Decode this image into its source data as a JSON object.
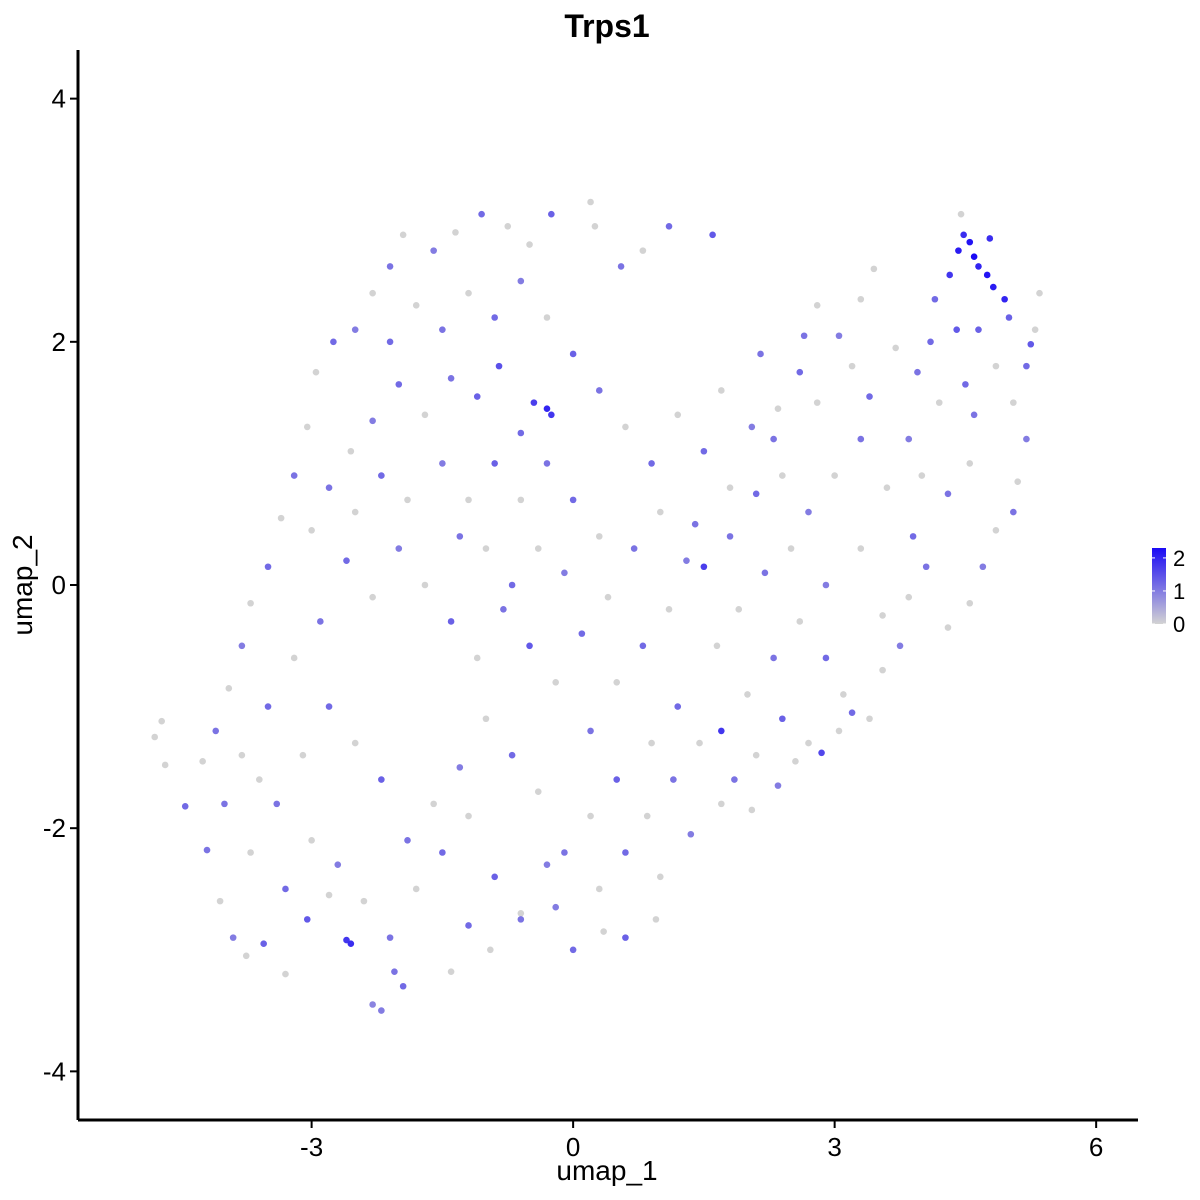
{
  "chart_data": {
    "type": "scatter",
    "title": "Trps1",
    "xlabel": "umap_1",
    "ylabel": "umap_2",
    "xlim": [
      -5.68,
      6.48
    ],
    "ylim": [
      -4.4,
      4.4
    ],
    "x_ticks": [
      -3,
      0,
      3,
      6
    ],
    "x_tick_labels": [
      "-3",
      "0",
      "3",
      "6"
    ],
    "y_ticks": [
      -4,
      -2,
      0,
      2,
      4
    ],
    "y_tick_labels": [
      "-4",
      "-2",
      "0",
      "2",
      "4"
    ],
    "grid": false,
    "legend": {
      "placement": "right",
      "type": "colorbar",
      "range": [
        0,
        2.3
      ],
      "ticks": [
        0,
        1,
        2
      ],
      "tick_labels": [
        "0",
        "1",
        "2"
      ],
      "low_color": "#d3d3d3",
      "high_color": "#1a0af5"
    },
    "point_color_scale": {
      "low": "#d3d3d3",
      "high": "#1a0af5",
      "min": 0,
      "max": 2.3
    },
    "points": [
      {
        "x": -4.8,
        "y": -1.25,
        "v": 0
      },
      {
        "x": -4.72,
        "y": -1.12,
        "v": 0
      },
      {
        "x": -4.68,
        "y": -1.48,
        "v": 0
      },
      {
        "x": -4.45,
        "y": -1.82,
        "v": 1.2
      },
      {
        "x": -4.2,
        "y": -2.18,
        "v": 1.1
      },
      {
        "x": -4.05,
        "y": -2.6,
        "v": 0
      },
      {
        "x": -3.9,
        "y": -2.9,
        "v": 1.0
      },
      {
        "x": -3.75,
        "y": -3.05,
        "v": 0
      },
      {
        "x": -3.55,
        "y": -2.95,
        "v": 1.3
      },
      {
        "x": -3.3,
        "y": -3.2,
        "v": 0
      },
      {
        "x": -3.05,
        "y": -2.75,
        "v": 1.4
      },
      {
        "x": -2.8,
        "y": -2.55,
        "v": 0
      },
      {
        "x": -2.6,
        "y": -2.92,
        "v": 1.8
      },
      {
        "x": -2.55,
        "y": -2.95,
        "v": 1.9
      },
      {
        "x": -2.3,
        "y": -3.45,
        "v": 0.9
      },
      {
        "x": -2.2,
        "y": -3.5,
        "v": 1.0
      },
      {
        "x": -2.05,
        "y": -3.18,
        "v": 1.1
      },
      {
        "x": -1.95,
        "y": -3.3,
        "v": 1.2
      },
      {
        "x": -1.4,
        "y": -3.18,
        "v": 0
      },
      {
        "x": -1.2,
        "y": -2.8,
        "v": 1.2
      },
      {
        "x": -0.95,
        "y": -3.0,
        "v": 0
      },
      {
        "x": -0.6,
        "y": -2.75,
        "v": 1.1
      },
      {
        "x": -0.2,
        "y": -2.65,
        "v": 1.0
      },
      {
        "x": 0.0,
        "y": -3.0,
        "v": 1.2
      },
      {
        "x": 0.35,
        "y": -2.85,
        "v": 0
      },
      {
        "x": 0.6,
        "y": -2.9,
        "v": 1.3
      },
      {
        "x": 0.95,
        "y": -2.75,
        "v": 0
      },
      {
        "x": 1.0,
        "y": -2.4,
        "v": 0
      },
      {
        "x": 1.35,
        "y": -2.05,
        "v": 1.0
      },
      {
        "x": 1.7,
        "y": -1.8,
        "v": 0
      },
      {
        "x": 1.85,
        "y": -1.6,
        "v": 1.1
      },
      {
        "x": 2.05,
        "y": -1.85,
        "v": 0
      },
      {
        "x": 2.35,
        "y": -1.65,
        "v": 1.0
      },
      {
        "x": 2.55,
        "y": -1.45,
        "v": 0
      },
      {
        "x": 2.7,
        "y": -1.3,
        "v": 0
      },
      {
        "x": 2.85,
        "y": -1.38,
        "v": 1.6
      },
      {
        "x": 3.05,
        "y": -1.2,
        "v": 0
      },
      {
        "x": 3.2,
        "y": -1.05,
        "v": 1.2
      },
      {
        "x": 3.4,
        "y": -1.1,
        "v": 0
      },
      {
        "x": 3.55,
        "y": -0.7,
        "v": 0
      },
      {
        "x": 3.75,
        "y": -0.5,
        "v": 1.0
      },
      {
        "x": 3.55,
        "y": -0.25,
        "v": 0
      },
      {
        "x": 3.85,
        "y": -0.1,
        "v": 0
      },
      {
        "x": 4.05,
        "y": 0.15,
        "v": 1.1
      },
      {
        "x": 4.3,
        "y": -0.35,
        "v": 0
      },
      {
        "x": 4.55,
        "y": -0.15,
        "v": 0
      },
      {
        "x": 4.7,
        "y": 0.15,
        "v": 1.0
      },
      {
        "x": 4.85,
        "y": 0.45,
        "v": 0
      },
      {
        "x": 5.05,
        "y": 0.6,
        "v": 1.1
      },
      {
        "x": 5.1,
        "y": 0.85,
        "v": 0
      },
      {
        "x": 5.2,
        "y": 1.2,
        "v": 1.0
      },
      {
        "x": 5.05,
        "y": 1.5,
        "v": 0
      },
      {
        "x": 5.2,
        "y": 1.8,
        "v": 1.2
      },
      {
        "x": 5.3,
        "y": 2.1,
        "v": 0
      },
      {
        "x": 5.35,
        "y": 2.4,
        "v": 0
      },
      {
        "x": 5.25,
        "y": 1.98,
        "v": 1.4
      },
      {
        "x": 5.0,
        "y": 2.2,
        "v": 1.3
      },
      {
        "x": 4.95,
        "y": 2.35,
        "v": 2.0
      },
      {
        "x": 4.82,
        "y": 2.45,
        "v": 2.1
      },
      {
        "x": 4.75,
        "y": 2.55,
        "v": 2.2
      },
      {
        "x": 4.65,
        "y": 2.62,
        "v": 2.0
      },
      {
        "x": 4.6,
        "y": 2.7,
        "v": 2.3
      },
      {
        "x": 4.55,
        "y": 2.82,
        "v": 2.2
      },
      {
        "x": 4.48,
        "y": 2.88,
        "v": 1.9
      },
      {
        "x": 4.42,
        "y": 2.75,
        "v": 2.1
      },
      {
        "x": 4.45,
        "y": 3.05,
        "v": 0
      },
      {
        "x": 4.78,
        "y": 2.85,
        "v": 1.9
      },
      {
        "x": 4.32,
        "y": 2.55,
        "v": 1.8
      },
      {
        "x": 4.15,
        "y": 2.35,
        "v": 1.2
      },
      {
        "x": 4.4,
        "y": 2.1,
        "v": 1.4
      },
      {
        "x": 4.65,
        "y": 2.1,
        "v": 1.3
      },
      {
        "x": 4.85,
        "y": 1.8,
        "v": 0
      },
      {
        "x": 4.5,
        "y": 1.65,
        "v": 1.2
      },
      {
        "x": 4.2,
        "y": 1.5,
        "v": 0
      },
      {
        "x": 3.95,
        "y": 1.75,
        "v": 1.1
      },
      {
        "x": 3.7,
        "y": 1.95,
        "v": 0
      },
      {
        "x": 3.85,
        "y": 1.2,
        "v": 1.0
      },
      {
        "x": 4.0,
        "y": 0.9,
        "v": 0
      },
      {
        "x": 4.3,
        "y": 0.75,
        "v": 1.1
      },
      {
        "x": 4.55,
        "y": 1.0,
        "v": 0
      },
      {
        "x": 3.4,
        "y": 1.55,
        "v": 1.2
      },
      {
        "x": 3.2,
        "y": 1.8,
        "v": 0
      },
      {
        "x": 3.05,
        "y": 2.05,
        "v": 1.0
      },
      {
        "x": 3.3,
        "y": 2.35,
        "v": 0
      },
      {
        "x": 3.45,
        "y": 2.6,
        "v": 0
      },
      {
        "x": 2.8,
        "y": 2.3,
        "v": 0
      },
      {
        "x": 2.65,
        "y": 2.05,
        "v": 1.1
      },
      {
        "x": 2.6,
        "y": 1.75,
        "v": 1.2
      },
      {
        "x": 2.35,
        "y": 1.45,
        "v": 0
      },
      {
        "x": 2.05,
        "y": 1.3,
        "v": 1.0
      },
      {
        "x": 2.15,
        "y": 1.9,
        "v": 1.1
      },
      {
        "x": 1.7,
        "y": 1.6,
        "v": 0
      },
      {
        "x": 1.6,
        "y": 2.88,
        "v": 1.4
      },
      {
        "x": 1.1,
        "y": 2.95,
        "v": 1.2
      },
      {
        "x": 0.8,
        "y": 2.75,
        "v": 0
      },
      {
        "x": 0.55,
        "y": 2.62,
        "v": 1.1
      },
      {
        "x": 0.25,
        "y": 2.95,
        "v": 0
      },
      {
        "x": 0.2,
        "y": 3.15,
        "v": 0
      },
      {
        "x": -0.25,
        "y": 3.05,
        "v": 1.3
      },
      {
        "x": -0.5,
        "y": 2.8,
        "v": 0
      },
      {
        "x": -0.75,
        "y": 2.95,
        "v": 0
      },
      {
        "x": -1.05,
        "y": 3.05,
        "v": 1.2
      },
      {
        "x": -1.35,
        "y": 2.9,
        "v": 0
      },
      {
        "x": -1.6,
        "y": 2.75,
        "v": 1.0
      },
      {
        "x": -1.95,
        "y": 2.88,
        "v": 0
      },
      {
        "x": -2.1,
        "y": 2.62,
        "v": 1.1
      },
      {
        "x": -2.3,
        "y": 2.4,
        "v": 0
      },
      {
        "x": -2.5,
        "y": 2.1,
        "v": 1.0
      },
      {
        "x": -2.75,
        "y": 2.0,
        "v": 1.2
      },
      {
        "x": -2.95,
        "y": 1.75,
        "v": 0
      },
      {
        "x": -3.05,
        "y": 1.3,
        "v": 0
      },
      {
        "x": -3.2,
        "y": 0.9,
        "v": 1.1
      },
      {
        "x": -3.35,
        "y": 0.55,
        "v": 0
      },
      {
        "x": -3.5,
        "y": 0.15,
        "v": 1.2
      },
      {
        "x": -3.7,
        "y": -0.15,
        "v": 0
      },
      {
        "x": -3.8,
        "y": -0.5,
        "v": 1.0
      },
      {
        "x": -3.95,
        "y": -0.85,
        "v": 0
      },
      {
        "x": -4.1,
        "y": -1.2,
        "v": 1.1
      },
      {
        "x": -4.25,
        "y": -1.45,
        "v": 0
      },
      {
        "x": -0.3,
        "y": 1.45,
        "v": 2.0
      },
      {
        "x": -0.25,
        "y": 1.4,
        "v": 1.8
      },
      {
        "x": -0.45,
        "y": 1.5,
        "v": 1.7
      },
      {
        "x": -0.6,
        "y": 1.25,
        "v": 1.2
      },
      {
        "x": -0.85,
        "y": 1.8,
        "v": 1.5
      },
      {
        "x": -1.1,
        "y": 1.55,
        "v": 1.3
      },
      {
        "x": -1.4,
        "y": 1.7,
        "v": 1.1
      },
      {
        "x": -1.7,
        "y": 1.4,
        "v": 0
      },
      {
        "x": -2.0,
        "y": 1.65,
        "v": 1.2
      },
      {
        "x": -2.3,
        "y": 1.35,
        "v": 1.0
      },
      {
        "x": -2.55,
        "y": 1.1,
        "v": 0
      },
      {
        "x": -2.8,
        "y": 0.8,
        "v": 1.1
      },
      {
        "x": -3.0,
        "y": 0.45,
        "v": 0
      },
      {
        "x": -2.6,
        "y": 0.2,
        "v": 1.2
      },
      {
        "x": -2.3,
        "y": -0.1,
        "v": 0
      },
      {
        "x": -2.0,
        "y": 0.3,
        "v": 1.0
      },
      {
        "x": -1.7,
        "y": 0.0,
        "v": 0
      },
      {
        "x": -1.4,
        "y": -0.3,
        "v": 1.3
      },
      {
        "x": -1.1,
        "y": -0.6,
        "v": 0
      },
      {
        "x": -0.8,
        "y": -0.2,
        "v": 1.1
      },
      {
        "x": -0.5,
        "y": -0.5,
        "v": 1.4
      },
      {
        "x": -0.2,
        "y": -0.8,
        "v": 0
      },
      {
        "x": 0.1,
        "y": -0.4,
        "v": 1.2
      },
      {
        "x": 0.4,
        "y": -0.1,
        "v": 0
      },
      {
        "x": 0.7,
        "y": 0.3,
        "v": 1.1
      },
      {
        "x": 1.0,
        "y": 0.6,
        "v": 0
      },
      {
        "x": 1.3,
        "y": 0.2,
        "v": 1.0
      },
      {
        "x": 1.5,
        "y": 0.15,
        "v": 1.7
      },
      {
        "x": 1.65,
        "y": -0.5,
        "v": 0
      },
      {
        "x": 1.2,
        "y": -1.0,
        "v": 1.2
      },
      {
        "x": 0.9,
        "y": -1.3,
        "v": 0
      },
      {
        "x": 0.5,
        "y": -1.6,
        "v": 1.3
      },
      {
        "x": 0.2,
        "y": -1.9,
        "v": 0
      },
      {
        "x": -0.1,
        "y": -2.2,
        "v": 1.1
      },
      {
        "x": -0.4,
        "y": -1.7,
        "v": 0
      },
      {
        "x": -0.7,
        "y": -1.4,
        "v": 1.2
      },
      {
        "x": -1.0,
        "y": -1.1,
        "v": 0
      },
      {
        "x": -1.3,
        "y": -1.5,
        "v": 1.0
      },
      {
        "x": -1.6,
        "y": -1.8,
        "v": 0
      },
      {
        "x": -1.9,
        "y": -2.1,
        "v": 1.1
      },
      {
        "x": -2.2,
        "y": -1.6,
        "v": 1.3
      },
      {
        "x": -2.5,
        "y": -1.3,
        "v": 0
      },
      {
        "x": -2.8,
        "y": -1.0,
        "v": 1.2
      },
      {
        "x": -3.1,
        "y": -1.4,
        "v": 0
      },
      {
        "x": -3.4,
        "y": -1.8,
        "v": 1.1
      },
      {
        "x": -3.7,
        "y": -2.2,
        "v": 0
      },
      {
        "x": -3.3,
        "y": -2.5,
        "v": 1.2
      },
      {
        "x": -3.0,
        "y": -2.1,
        "v": 0
      },
      {
        "x": -2.7,
        "y": -2.3,
        "v": 1.0
      },
      {
        "x": -2.4,
        "y": -2.6,
        "v": 0
      },
      {
        "x": -2.1,
        "y": -2.9,
        "v": 1.1
      },
      {
        "x": -1.8,
        "y": -2.5,
        "v": 0
      },
      {
        "x": -1.5,
        "y": -2.2,
        "v": 1.2
      },
      {
        "x": -1.2,
        "y": -1.9,
        "v": 0
      },
      {
        "x": -0.9,
        "y": -2.4,
        "v": 1.3
      },
      {
        "x": -0.6,
        "y": -2.7,
        "v": 0
      },
      {
        "x": -0.3,
        "y": -2.3,
        "v": 1.0
      },
      {
        "x": 0.3,
        "y": -2.5,
        "v": 0
      },
      {
        "x": 0.6,
        "y": -2.2,
        "v": 1.2
      },
      {
        "x": 0.85,
        "y": -1.9,
        "v": 0
      },
      {
        "x": 1.15,
        "y": -1.6,
        "v": 1.1
      },
      {
        "x": 1.45,
        "y": -1.3,
        "v": 0
      },
      {
        "x": 1.7,
        "y": -1.2,
        "v": 1.8
      },
      {
        "x": 2.0,
        "y": -0.9,
        "v": 0
      },
      {
        "x": 2.3,
        "y": -0.6,
        "v": 1.1
      },
      {
        "x": 2.6,
        "y": -0.3,
        "v": 0
      },
      {
        "x": 2.9,
        "y": -0.6,
        "v": 1.2
      },
      {
        "x": 3.1,
        "y": -0.9,
        "v": 0
      },
      {
        "x": 2.4,
        "y": -1.1,
        "v": 1.3
      },
      {
        "x": 2.1,
        "y": -1.4,
        "v": 0
      },
      {
        "x": 1.8,
        "y": 0.4,
        "v": 1.1
      },
      {
        "x": 2.1,
        "y": 0.75,
        "v": 1.2
      },
      {
        "x": 2.4,
        "y": 0.9,
        "v": 0
      },
      {
        "x": 2.7,
        "y": 0.6,
        "v": 1.0
      },
      {
        "x": 3.0,
        "y": 0.9,
        "v": 0
      },
      {
        "x": 3.3,
        "y": 1.2,
        "v": 1.1
      },
      {
        "x": 3.6,
        "y": 0.8,
        "v": 0
      },
      {
        "x": 3.9,
        "y": 0.4,
        "v": 1.2
      },
      {
        "x": 3.3,
        "y": 0.3,
        "v": 0
      },
      {
        "x": 2.9,
        "y": 0.0,
        "v": 1.0
      },
      {
        "x": 2.5,
        "y": 0.3,
        "v": 0
      },
      {
        "x": 2.2,
        "y": 0.1,
        "v": 1.1
      },
      {
        "x": 1.9,
        "y": -0.2,
        "v": 0
      },
      {
        "x": 0.9,
        "y": 1.0,
        "v": 1.2
      },
      {
        "x": 0.6,
        "y": 1.3,
        "v": 0
      },
      {
        "x": 0.3,
        "y": 1.6,
        "v": 1.1
      },
      {
        "x": 0.0,
        "y": 1.9,
        "v": 1.3
      },
      {
        "x": -0.3,
        "y": 2.2,
        "v": 0
      },
      {
        "x": -0.6,
        "y": 2.5,
        "v": 1.0
      },
      {
        "x": -0.9,
        "y": 2.2,
        "v": 1.2
      },
      {
        "x": -1.2,
        "y": 2.4,
        "v": 0
      },
      {
        "x": -1.5,
        "y": 2.1,
        "v": 1.1
      },
      {
        "x": -1.8,
        "y": 2.3,
        "v": 0
      },
      {
        "x": -2.1,
        "y": 2.0,
        "v": 1.2
      },
      {
        "x": -1.5,
        "y": 1.0,
        "v": 1.0
      },
      {
        "x": -1.2,
        "y": 0.7,
        "v": 0
      },
      {
        "x": -0.9,
        "y": 1.0,
        "v": 1.3
      },
      {
        "x": -0.6,
        "y": 0.7,
        "v": 0
      },
      {
        "x": -0.3,
        "y": 1.0,
        "v": 1.1
      },
      {
        "x": 0.0,
        "y": 0.7,
        "v": 1.2
      },
      {
        "x": 0.3,
        "y": 0.4,
        "v": 0
      },
      {
        "x": -0.1,
        "y": 0.1,
        "v": 1.0
      },
      {
        "x": -0.4,
        "y": 0.3,
        "v": 0
      },
      {
        "x": -0.7,
        "y": 0.0,
        "v": 1.2
      },
      {
        "x": -1.0,
        "y": 0.3,
        "v": 0
      },
      {
        "x": -1.3,
        "y": 0.4,
        "v": 1.1
      },
      {
        "x": -1.9,
        "y": 0.7,
        "v": 0
      },
      {
        "x": -2.2,
        "y": 0.9,
        "v": 1.2
      },
      {
        "x": -2.5,
        "y": 0.6,
        "v": 0
      },
      {
        "x": -2.9,
        "y": -0.3,
        "v": 1.1
      },
      {
        "x": -3.2,
        "y": -0.6,
        "v": 0
      },
      {
        "x": -3.5,
        "y": -1.0,
        "v": 1.2
      },
      {
        "x": -3.8,
        "y": -1.4,
        "v": 0
      },
      {
        "x": -4.0,
        "y": -1.8,
        "v": 1.1
      },
      {
        "x": -3.6,
        "y": -1.6,
        "v": 0
      },
      {
        "x": 0.2,
        "y": -1.2,
        "v": 1.1
      },
      {
        "x": 0.5,
        "y": -0.8,
        "v": 0
      },
      {
        "x": 0.8,
        "y": -0.5,
        "v": 1.2
      },
      {
        "x": 1.1,
        "y": -0.2,
        "v": 0
      },
      {
        "x": 1.4,
        "y": 0.5,
        "v": 1.1
      },
      {
        "x": 1.2,
        "y": 1.4,
        "v": 0
      },
      {
        "x": 1.5,
        "y": 1.1,
        "v": 1.2
      },
      {
        "x": 1.8,
        "y": 0.8,
        "v": 0
      },
      {
        "x": 2.3,
        "y": 1.2,
        "v": 1.1
      },
      {
        "x": 2.8,
        "y": 1.5,
        "v": 0
      },
      {
        "x": 4.1,
        "y": 2.0,
        "v": 1.2
      },
      {
        "x": 4.6,
        "y": 1.4,
        "v": 1.1
      }
    ]
  }
}
